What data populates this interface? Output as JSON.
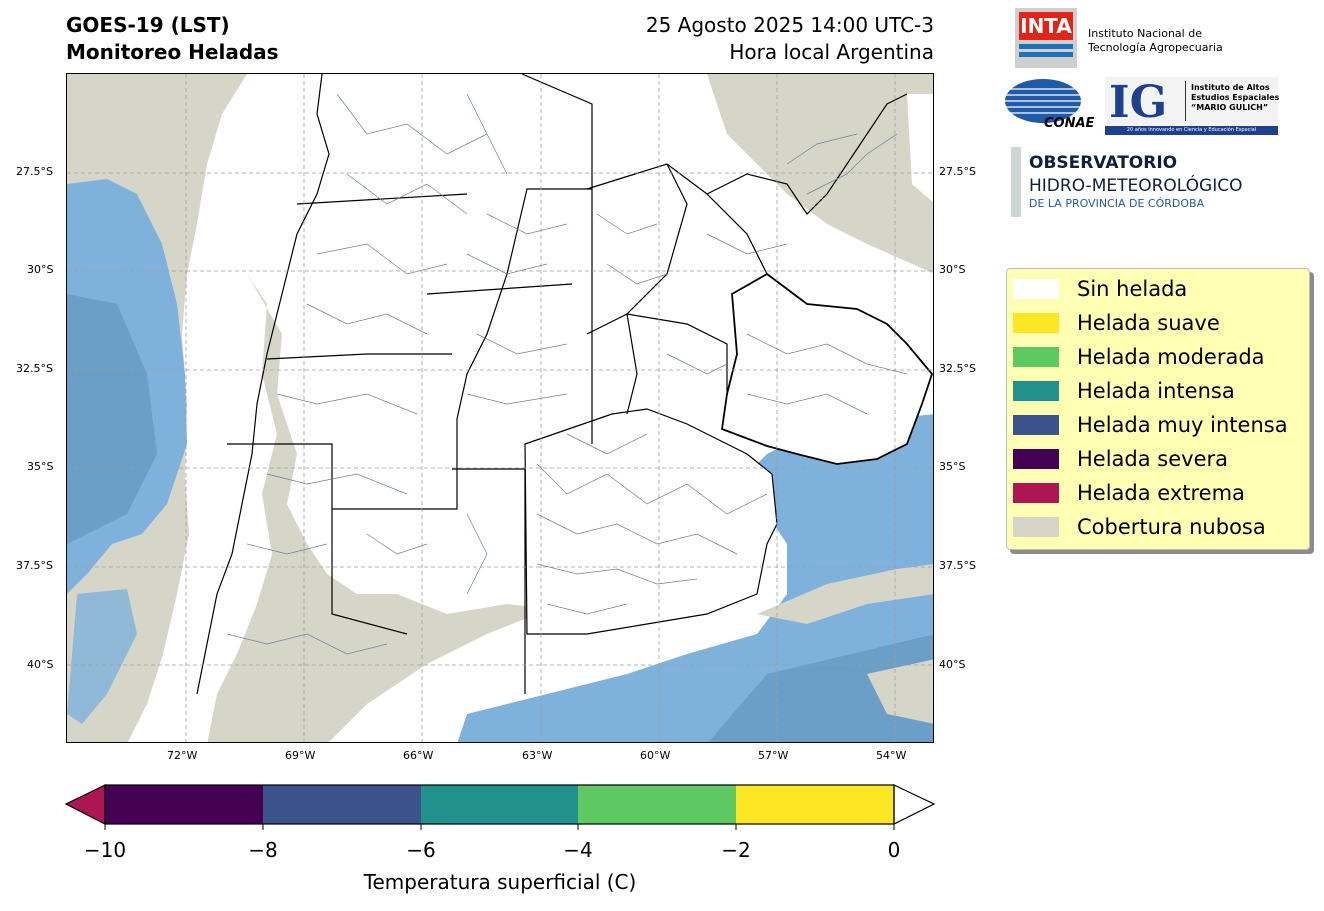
{
  "header": {
    "title": "GOES-19 (LST)\nMonitoreo Heladas",
    "datetime": "25 Agosto 2025 14:00 UTC-3\nHora local Argentina"
  },
  "map": {
    "lat_labels": [
      "27.5°S",
      "30°S",
      "32.5°S",
      "35°S",
      "37.5°S",
      "40°S"
    ],
    "lon_labels": [
      "72°W",
      "69°W",
      "66°W",
      "63°W",
      "60°W",
      "57°W",
      "54°W"
    ],
    "colors": {
      "ocean": "#7eb2dc",
      "deep": "#6a9fc8",
      "cloud": "#d6d6c8",
      "land": "#ffffff",
      "border": "#000000",
      "district": "#6e7f99"
    }
  },
  "legend": {
    "items": [
      {
        "label": "Sin helada",
        "color": "#ffffff"
      },
      {
        "label": "Helada suave",
        "color": "#fde725"
      },
      {
        "label": "Helada moderada",
        "color": "#5ec962"
      },
      {
        "label": "Helada intensa",
        "color": "#21918c"
      },
      {
        "label": "Helada muy intensa",
        "color": "#3b528b"
      },
      {
        "label": "Helada severa",
        "color": "#440154"
      },
      {
        "label": "Helada extrema",
        "color": "#ad1654"
      },
      {
        "label": "Cobertura nubosa",
        "color": "#d6d6c8"
      }
    ]
  },
  "colorbar": {
    "ticks": [
      "−10",
      "−8",
      "−6",
      "−4",
      "−2",
      "0"
    ],
    "label": "Temperatura superficial (C)",
    "colors": [
      "#440154",
      "#3b528b",
      "#21918c",
      "#5ec962",
      "#fde725"
    ],
    "under_color": "#ad1654",
    "over_color": "#ffffff"
  },
  "logos": {
    "inta_mark": "INTA",
    "inta_name": "Instituto Nacional de\nTecnología Agropecuaria",
    "conae": "CONAE",
    "ig_mark": "IG",
    "ig_name": "Instituto de Altos\nEstudios Espaciales\n“MARIO GULICH”",
    "ig_tagline": "20 años innovando en Ciencia y Educación Espacial",
    "obs_line1": "OBSERVATORIO",
    "obs_line2": "HIDRO-METEOROLÓGICO",
    "obs_line3": "DE LA PROVINCIA DE CÓRDOBA"
  }
}
